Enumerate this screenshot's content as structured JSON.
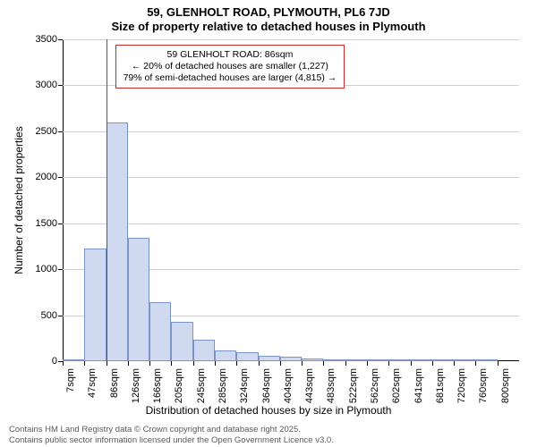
{
  "chart": {
    "type": "histogram",
    "title_line1": "59, GLENHOLT ROAD, PLYMOUTH, PL6 7JD",
    "title_line2": "Size of property relative to detached houses in Plymouth",
    "y_axis_label": "Number of detached properties",
    "x_axis_label": "Distribution of detached houses by size in Plymouth",
    "background_color": "#ffffff",
    "grid_color": "#d0d0d0",
    "bar_fill_color": "#cfd9ef",
    "bar_border_color": "#7a94c6",
    "marker_color": "#c82a2a",
    "ylim": [
      0,
      3500
    ],
    "ytick_step": 500,
    "y_ticks": [
      0,
      500,
      1000,
      1500,
      2000,
      2500,
      3000,
      3500
    ],
    "x_categories": [
      "7sqm",
      "47sqm",
      "86sqm",
      "126sqm",
      "166sqm",
      "205sqm",
      "245sqm",
      "285sqm",
      "324sqm",
      "364sqm",
      "404sqm",
      "443sqm",
      "483sqm",
      "522sqm",
      "562sqm",
      "602sqm",
      "641sqm",
      "681sqm",
      "720sqm",
      "760sqm",
      "800sqm"
    ],
    "values": [
      20,
      1230,
      2600,
      1340,
      640,
      430,
      230,
      120,
      95,
      60,
      46,
      34,
      20,
      14,
      10,
      8,
      6,
      4,
      3,
      2
    ],
    "bar_width": 1.0,
    "marker_at_category_index": 2,
    "annotation": {
      "line1": "59 GLENHOLT ROAD: 86sqm",
      "line2": "← 20% of detached houses are smaller (1,227)",
      "line3": "79% of semi-detached houses are larger (4,815) →"
    }
  },
  "footer": {
    "line1": "Contains HM Land Registry data © Crown copyright and database right 2025.",
    "line2": "Contains public sector information licensed under the Open Government Licence v3.0."
  }
}
